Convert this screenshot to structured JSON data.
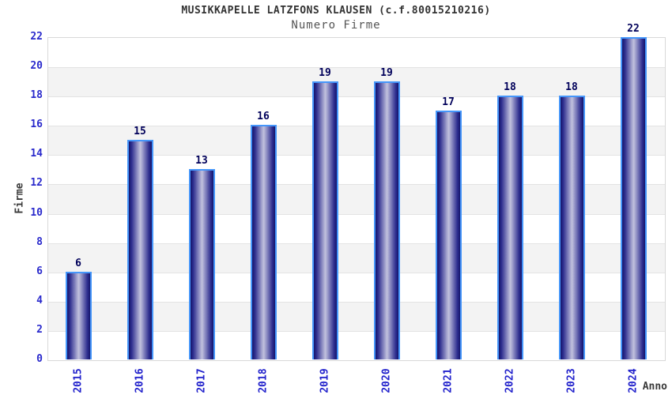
{
  "chart_data": {
    "type": "bar",
    "title": "MUSIKKAPELLE LATZFONS KLAUSEN (c.f.80015210216)",
    "subtitle": "Numero Firme",
    "xlabel": "Anno",
    "ylabel": "Firme",
    "categories": [
      "2015",
      "2016",
      "2017",
      "2018",
      "2019",
      "2020",
      "2021",
      "2022",
      "2023",
      "2024"
    ],
    "values": [
      6,
      15,
      13,
      16,
      19,
      19,
      17,
      18,
      18,
      22
    ],
    "ylim": [
      0,
      22
    ],
    "ytick_step": 2,
    "grid": "horizontal, alternating shaded bands every 2 units",
    "legend": "none",
    "colors": {
      "bar_dark": "#15156b",
      "bar_light": "#c2c2de",
      "bar_border": "#4596fa",
      "value_label": "#00005a",
      "tick_label": "#2a2acc",
      "band": "#f3f3f3",
      "gridline": "#e3e3e3",
      "title": "#333333",
      "subtitle": "#555555",
      "axis_label": "#3a3a3a",
      "background": "#ffffff"
    }
  }
}
